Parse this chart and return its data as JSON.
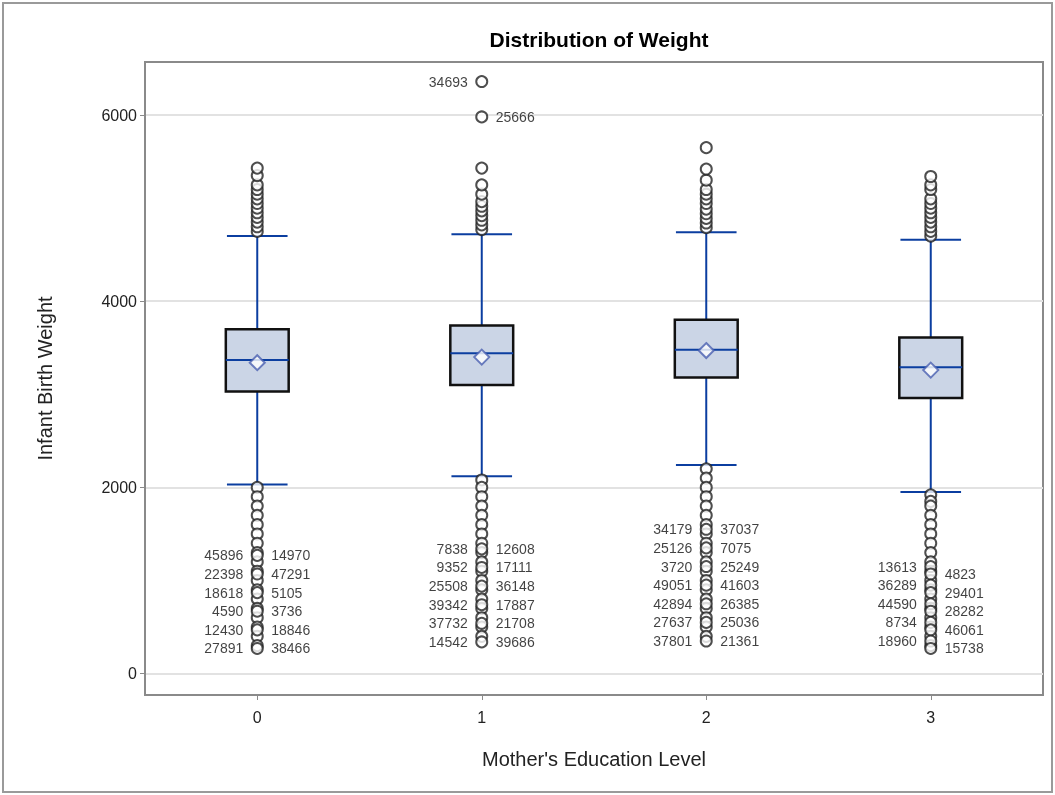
{
  "chart_data": {
    "type": "box",
    "title": "Distribution of Weight",
    "xlabel": "Mother's Education Level",
    "ylabel": "Infant Birth Weight",
    "categories": [
      "0",
      "1",
      "2",
      "3"
    ],
    "series": [
      {
        "color": "#cbd5e6",
        "boxes": [
          {
            "low": 2030,
            "q1": 3030,
            "median": 3370,
            "q3": 3700,
            "high": 4700,
            "mean": 3340,
            "outliers": [
              4750,
              4800,
              4850,
              4900,
              4950,
              5000,
              5050,
              5100,
              5150,
              5200,
              5250,
              5350,
              5430,
              2000,
              1900,
              1800,
              1700,
              1600,
              1500,
              1400,
              1300,
              1200,
              1100,
              1000,
              900,
              800,
              700,
              600,
              500,
              400,
              300
            ]
          },
          {
            "low": 2120,
            "q1": 3100,
            "median": 3440,
            "q3": 3740,
            "high": 4720,
            "mean": 3400,
            "outliers": [
              4770,
              4820,
              4870,
              4920,
              4970,
              5020,
              5070,
              5150,
              5250,
              5430,
              2080,
              2000,
              1900,
              1800,
              1700,
              1600,
              1500,
              1400,
              1300,
              1200,
              1100,
              1000,
              900,
              800,
              700,
              600,
              500,
              400
            ]
          },
          {
            "low": 2240,
            "q1": 3180,
            "median": 3480,
            "q3": 3800,
            "high": 4740,
            "mean": 3470,
            "outliers": [
              4790,
              4840,
              4890,
              4940,
              4990,
              5050,
              5100,
              5150,
              5200,
              5300,
              5420,
              5650,
              2200,
              2100,
              2000,
              1900,
              1800,
              1700,
              1600,
              1500,
              1400,
              1300,
              1200,
              1100,
              1000,
              900,
              800,
              700,
              600,
              500,
              400
            ]
          },
          {
            "low": 1950,
            "q1": 2960,
            "median": 3290,
            "q3": 3610,
            "high": 4660,
            "mean": 3260,
            "outliers": [
              4700,
              4750,
              4800,
              4850,
              4900,
              4950,
              5000,
              5050,
              5100,
              5200,
              5250,
              5340,
              1920,
              1850,
              1800,
              1700,
              1600,
              1500,
              1400,
              1300,
              1200,
              1100,
              1000,
              900,
              800,
              700,
              600,
              500,
              400,
              300
            ]
          }
        ]
      },
      {
        "type": "scatter",
        "color": "#222222",
        "x": [
          "1",
          "1",
          "0",
          "0",
          "0",
          "0",
          "0",
          "0",
          "1",
          "1",
          "1",
          "1",
          "1",
          "1",
          "2",
          "2",
          "2",
          "2",
          "2",
          "2",
          "2",
          "3",
          "3",
          "3",
          "3",
          "3",
          "3",
          "3",
          "3",
          "3",
          "3"
        ],
        "values": [
          6360,
          5980,
          1270,
          1070,
          870,
          670,
          470,
          270,
          1340,
          1140,
          940,
          740,
          540,
          340,
          1550,
          1350,
          1150,
          950,
          750,
          550,
          350,
          1150,
          1070,
          950,
          870,
          750,
          670,
          550,
          470,
          350,
          270
        ]
      }
    ],
    "ylim": [
      -230,
      6570
    ],
    "yticks": [
      0,
      2000,
      4000,
      6000
    ],
    "grid": "y",
    "marker": "circle",
    "annotations": [
      {
        "text": "34693",
        "x": "1",
        "y": 6360
      },
      {
        "text": "25666",
        "x": "1",
        "y": 5980
      },
      {
        "text": "45896",
        "x": "0",
        "y": 1270
      },
      {
        "text": "14970",
        "x": "0",
        "y": 1270
      },
      {
        "text": "22398",
        "x": "0",
        "y": 1070
      },
      {
        "text": "47291",
        "x": "0",
        "y": 1070
      },
      {
        "text": "18618",
        "x": "0",
        "y": 870
      },
      {
        "text": "5105",
        "x": "0",
        "y": 870
      },
      {
        "text": "4590",
        "x": "0",
        "y": 670
      },
      {
        "text": "3736",
        "x": "0",
        "y": 670
      },
      {
        "text": "12430",
        "x": "0",
        "y": 470
      },
      {
        "text": "18846",
        "x": "0",
        "y": 470
      },
      {
        "text": "27891",
        "x": "0",
        "y": 270
      },
      {
        "text": "38466",
        "x": "0",
        "y": 270
      },
      {
        "text": "7838",
        "x": "1",
        "y": 1340
      },
      {
        "text": "12608",
        "x": "1",
        "y": 1340
      },
      {
        "text": "9352",
        "x": "1",
        "y": 1140
      },
      {
        "text": "17111",
        "x": "1",
        "y": 1140
      },
      {
        "text": "25508",
        "x": "1",
        "y": 940
      },
      {
        "text": "36148",
        "x": "1",
        "y": 940
      },
      {
        "text": "39342",
        "x": "1",
        "y": 740
      },
      {
        "text": "17887",
        "x": "1",
        "y": 740
      },
      {
        "text": "37732",
        "x": "1",
        "y": 540
      },
      {
        "text": "21708",
        "x": "1",
        "y": 540
      },
      {
        "text": "14542",
        "x": "1",
        "y": 340
      },
      {
        "text": "39686",
        "x": "1",
        "y": 340
      },
      {
        "text": "34179",
        "x": "2",
        "y": 1550
      },
      {
        "text": "37037",
        "x": "2",
        "y": 1550
      },
      {
        "text": "25126",
        "x": "2",
        "y": 1350
      },
      {
        "text": "7075",
        "x": "2",
        "y": 1350
      },
      {
        "text": "3720",
        "x": "2",
        "y": 1150
      },
      {
        "text": "25249",
        "x": "2",
        "y": 1150
      },
      {
        "text": "49051",
        "x": "2",
        "y": 950
      },
      {
        "text": "41603",
        "x": "2",
        "y": 950
      },
      {
        "text": "42894",
        "x": "2",
        "y": 750
      },
      {
        "text": "26385",
        "x": "2",
        "y": 750
      },
      {
        "text": "27637",
        "x": "2",
        "y": 550
      },
      {
        "text": "25036",
        "x": "2",
        "y": 550
      },
      {
        "text": "37801",
        "x": "2",
        "y": 350
      },
      {
        "text": "21361",
        "x": "2",
        "y": 350
      },
      {
        "text": "13613",
        "x": "3",
        "y": 1150
      },
      {
        "text": "4823",
        "x": "3",
        "y": 1070
      },
      {
        "text": "36289",
        "x": "3",
        "y": 950
      },
      {
        "text": "29401",
        "x": "3",
        "y": 870
      },
      {
        "text": "44590",
        "x": "3",
        "y": 750
      },
      {
        "text": "28282",
        "x": "3",
        "y": 670
      },
      {
        "text": "8734",
        "x": "3",
        "y": 550
      },
      {
        "text": "46061",
        "x": "3",
        "y": 470
      },
      {
        "text": "18960",
        "x": "3",
        "y": 350
      },
      {
        "text": "15738",
        "x": "3",
        "y": 270
      }
    ]
  }
}
